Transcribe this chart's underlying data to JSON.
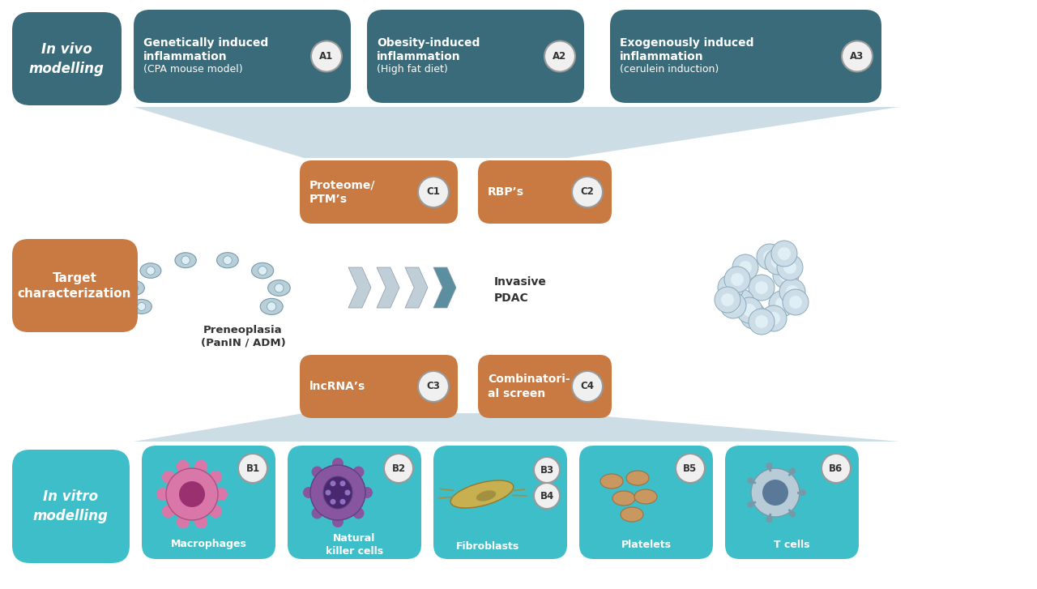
{
  "bg_color": "#ffffff",
  "teal_dark": "#3a6b7a",
  "teal_light": "#3dbec9",
  "orange": "#c97a42",
  "arrow_color": "#ccdde6",
  "white": "#ffffff",
  "invivo_label": "In vivo\nmodelling",
  "invitro_label": "In vitro\nmodelling",
  "target_label": "Target\ncharacterization",
  "a1_line1": "Genetically induced",
  "a1_line2": "inflammation",
  "a1_line3": "(CPA mouse model)",
  "a1_badge": "A1",
  "a2_line1": "Obesity-induced",
  "a2_line2": "inflammation",
  "a2_line3": "(High fat diet)",
  "a2_badge": "A2",
  "a3_line1": "Exogenously induced",
  "a3_line2": "inflammation",
  "a3_line3": "(cerulein induction)",
  "a3_badge": "A3",
  "c1_line1": "Proteome/",
  "c1_line2": "PTMʼs",
  "c1_badge": "C1",
  "c2_line1": "RBPʼs",
  "c2_badge": "C2",
  "c3_line1": "lncRNAʼs",
  "c3_badge": "C3",
  "c4_line1": "Combinatori-",
  "c4_line2": "al screen",
  "c4_badge": "C4",
  "preneoplasia_line1": "Preneoplasia",
  "preneoplasia_line2": "(PanIN / ADM)",
  "invasive_line1": "Invasive",
  "invasive_line2": "PDAC",
  "b1_label": "Macrophages",
  "b1_badge": "B1",
  "b2_label": "Natural\nkiller cells",
  "b2_badge": "B2",
  "b3_label": "Fibroblasts",
  "b3_badge": "B3",
  "b4_badge": "B4",
  "b5_label": "Platelets",
  "b5_badge": "B5",
  "b6_label": "T cells",
  "b6_badge": "B6"
}
